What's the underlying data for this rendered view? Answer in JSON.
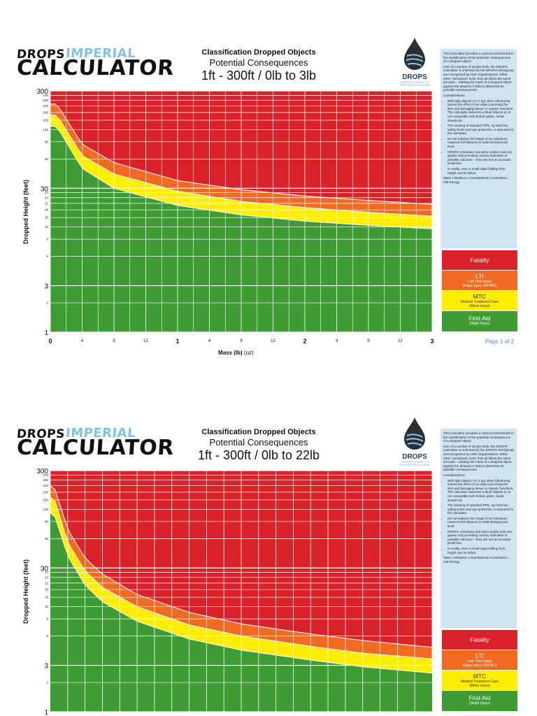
{
  "logo": {
    "word1": "DROPS",
    "word2": "IMPERIAL",
    "word3": "CALCULATOR"
  },
  "brand": {
    "name": "DROPS",
    "tagline_1": "DROPPED OBJECTS",
    "tagline_2": "PREVENTION SCHEME"
  },
  "info": {
    "intro": "This Calculator provides a common benchmark in the classification of the potential consequences of a dropped object.",
    "body": "One of a number of similar tools, the DROPS Calculator is endorsed by the DROPS Workgroup and recognised by HSE Organisations. While other 'calculators' exist, they all follow the same principle – plotting the mass of a dropped object against the distance it falls to determine its possible consequences.",
    "considerations_title": "Considerations",
    "bullets": [
      "With light objects (<0.1 kg) other influencing factors the effect of an object punching the skin and damaging tissue or organic functions. The calculator assumes a blunt objects so is not compatible with broken glass, metal shards etc.",
      "The wearing of standard PPE, eg hard hat, safety boots and eye protection, is assumed in the calculator.",
      "Do not subtract the height of an individual, measure full distance to solid deck/ground level.",
      "DROPS Calculator and other similar tools are guides only providing cursory indication of possible outcome – they are not an accurate prediction.",
      "In reality, even a small object falling from height can be lethal."
    ],
    "formula": "Mass x Distance x Gravitational Acceleration = Fall Energy"
  },
  "legend": [
    {
      "name": "Fatality",
      "sub1": "",
      "sub2": ""
    },
    {
      "name": "LTI",
      "sub1": "Lost Time Injury",
      "sub2": "(Major Injury DAFWC)"
    },
    {
      "name": "MTC",
      "sub1": "Medical Treatment Case",
      "sub2": "(Minor Injury)"
    },
    {
      "name": "First Aid",
      "sub1": "(Slight Injury)",
      "sub2": ""
    }
  ],
  "panels": [
    {
      "header_1": "Classification Dropped Objects",
      "header_2": "Potential Consequences",
      "header_3": "1ft - 300ft / 0lb to 3lb",
      "y_axis_label": "Dropped Height (feet)",
      "x_axis_label_bold": "Mass (lb)",
      "x_axis_label_rest": "(oz)",
      "page_number": "Page 1 of 2"
    },
    {
      "header_1": "Classification Dropped Objects",
      "header_2": "Potential Consequences",
      "header_3": "1ft - 300ft / 0lb to 22lb",
      "y_axis_label": "Dropped Height (feet)",
      "x_axis_label_bold": "",
      "x_axis_label_rest": "",
      "page_number": ""
    }
  ],
  "colors": {
    "fatality": "#d9222a",
    "lti": "#f16a22",
    "mtc": "#ffee00",
    "first_aid": "#3f9c35",
    "info_bg": "#cfe3f1",
    "logo_accent": "#7ec3e3"
  },
  "chart_data": [
    {
      "type": "area",
      "title": "1ft - 300ft / 0lb to 3lb",
      "xlabel": "Mass (lb) (oz)",
      "ylabel": "Dropped Height (feet)",
      "xlim": [
        0,
        3
      ],
      "ylim": [
        1,
        300
      ],
      "y_scale": "log",
      "grid": true,
      "x_major_ticks": [
        {
          "v": 0,
          "label": "0"
        },
        {
          "v": 1,
          "label": "1"
        },
        {
          "v": 2,
          "label": "2"
        },
        {
          "v": 3,
          "label": "3"
        }
      ],
      "x_minor_ticks": [
        {
          "v": 0.25,
          "label": "4"
        },
        {
          "v": 0.5,
          "label": "8"
        },
        {
          "v": 0.75,
          "label": "12"
        },
        {
          "v": 1.25,
          "label": "4"
        },
        {
          "v": 1.5,
          "label": "8"
        },
        {
          "v": 1.75,
          "label": "12"
        },
        {
          "v": 2.25,
          "label": "4"
        },
        {
          "v": 2.5,
          "label": "8"
        },
        {
          "v": 2.75,
          "label": "12"
        }
      ],
      "y_major_ticks": [
        {
          "v": 1,
          "label": "1"
        },
        {
          "v": 3,
          "label": "3"
        },
        {
          "v": 30,
          "label": "30"
        },
        {
          "v": 300,
          "label": "300"
        }
      ],
      "y_minor_ticks": [
        {
          "v": 2,
          "label": "2"
        },
        {
          "v": 6,
          "label": "6"
        },
        {
          "v": 9,
          "label": "9"
        },
        {
          "v": 12,
          "label": "12"
        },
        {
          "v": 15,
          "label": "15"
        },
        {
          "v": 18,
          "label": "18"
        },
        {
          "v": 21,
          "label": "21"
        },
        {
          "v": 24,
          "label": "24"
        },
        {
          "v": 27,
          "label": "27"
        },
        {
          "v": 60,
          "label": "60"
        },
        {
          "v": 90,
          "label": "90"
        },
        {
          "v": 120,
          "label": "120"
        },
        {
          "v": 150,
          "label": "150"
        },
        {
          "v": 180,
          "label": "180"
        },
        {
          "v": 210,
          "label": "210"
        },
        {
          "v": 240,
          "label": "240"
        },
        {
          "v": 270,
          "label": "270"
        }
      ],
      "series": [
        {
          "name": "First Aid",
          "x": [
            0.05,
            0.25,
            0.5,
            1,
            1.5,
            2,
            2.5,
            3
          ],
          "y": [
            130,
            48,
            30,
            20,
            16,
            13.8,
            12.5,
            11.5
          ]
        },
        {
          "name": "MTC",
          "x": [
            0.05,
            0.25,
            0.5,
            1,
            1.5,
            2,
            2.5,
            3
          ],
          "y": [
            170,
            65,
            42,
            28,
            22,
            19,
            17,
            15.5
          ]
        },
        {
          "name": "LTI",
          "x": [
            0.05,
            0.25,
            0.5,
            1,
            1.5,
            2,
            2.5,
            3
          ],
          "y": [
            220,
            85,
            55,
            36,
            29,
            25,
            22.5,
            20.5
          ]
        },
        {
          "name": "Fatality",
          "x": [
            0.05,
            0.25,
            0.5,
            1,
            1.5,
            2,
            2.5,
            3
          ],
          "y": [
            300,
            150,
            95,
            60,
            45,
            37,
            32,
            29
          ]
        }
      ]
    },
    {
      "type": "area",
      "title": "1ft - 300ft / 0lb to 22lb",
      "ylabel": "Dropped Height (feet)",
      "xlim": [
        0,
        22
      ],
      "ylim": [
        1,
        300
      ],
      "y_scale": "log",
      "grid": true,
      "x_major_ticks": [],
      "x_minor_ticks": [],
      "y_major_ticks": [
        {
          "v": 1,
          "label": "1"
        },
        {
          "v": 3,
          "label": "3"
        },
        {
          "v": 30,
          "label": "30"
        },
        {
          "v": 300,
          "label": "300"
        }
      ],
      "y_minor_ticks": [
        {
          "v": 2,
          "label": "2"
        },
        {
          "v": 6,
          "label": "6"
        },
        {
          "v": 9,
          "label": "9"
        },
        {
          "v": 12,
          "label": "12"
        },
        {
          "v": 15,
          "label": "15"
        },
        {
          "v": 18,
          "label": "18"
        },
        {
          "v": 21,
          "label": "21"
        },
        {
          "v": 24,
          "label": "24"
        },
        {
          "v": 27,
          "label": "27"
        },
        {
          "v": 60,
          "label": "60"
        },
        {
          "v": 90,
          "label": "90"
        },
        {
          "v": 120,
          "label": "120"
        },
        {
          "v": 150,
          "label": "150"
        },
        {
          "v": 180,
          "label": "180"
        },
        {
          "v": 210,
          "label": "210"
        },
        {
          "v": 240,
          "label": "240"
        },
        {
          "v": 270,
          "label": "270"
        }
      ],
      "series": [
        {
          "name": "First Aid",
          "x": [
            0.2,
            1,
            2,
            3,
            5,
            8,
            11,
            15,
            18,
            22
          ],
          "y": [
            110,
            40,
            20,
            13.5,
            8.5,
            5.6,
            4.3,
            3.4,
            2.9,
            2.5
          ]
        },
        {
          "name": "MTC",
          "x": [
            0.2,
            1,
            2,
            3,
            5,
            8,
            11,
            15,
            18,
            22
          ],
          "y": [
            160,
            55,
            28,
            19,
            12,
            7.8,
            6,
            4.7,
            4,
            3.5
          ]
        },
        {
          "name": "LTI",
          "x": [
            0.2,
            1,
            2,
            3,
            5,
            8,
            11,
            15,
            18,
            22
          ],
          "y": [
            210,
            75,
            38,
            26,
            16,
            10.5,
            8,
            6.3,
            5.4,
            4.6
          ]
        },
        {
          "name": "Fatality",
          "x": [
            0.2,
            1,
            2,
            3,
            5,
            8,
            11,
            15,
            18,
            22
          ],
          "y": [
            300,
            120,
            60,
            40,
            25,
            16,
            12,
            9.5,
            8,
            6.8
          ]
        }
      ]
    }
  ]
}
